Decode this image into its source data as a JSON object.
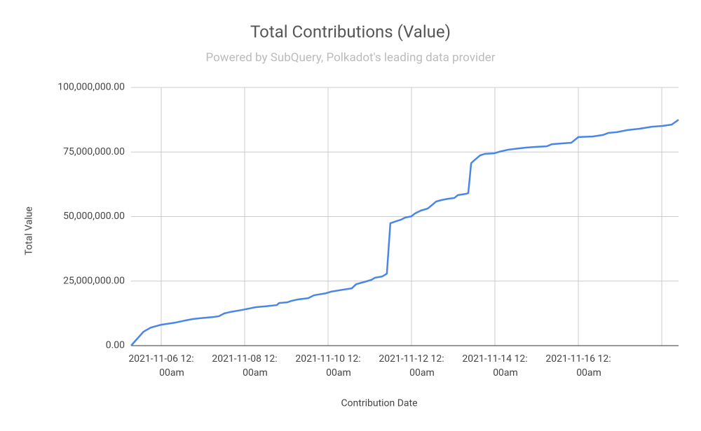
{
  "chart_data": {
    "type": "line",
    "title": "Total Contributions (Value)",
    "subtitle": "Powered by SubQuery, Polkadot's leading data provider",
    "x_label": "Contribution Date",
    "y_label": "Total Value",
    "x": [
      "2021-11-05T06:40",
      "2021-11-05T09:50",
      "2021-11-05T13:50",
      "2021-11-05T18:00",
      "2021-11-06T00:00",
      "2021-11-06T08:00",
      "2021-11-06T14:10",
      "2021-11-06T18:10",
      "2021-11-06T22:10",
      "2021-11-07T06:20",
      "2021-11-07T09:10",
      "2021-11-07T12:20",
      "2021-11-07T15:30",
      "2021-11-07T22:20",
      "2021-11-08T06:30",
      "2021-11-08T14:30",
      "2021-11-08T18:30",
      "2021-11-08T19:50",
      "2021-11-09T00:40",
      "2021-11-09T02:40",
      "2021-11-09T06:40",
      "2021-11-09T12:40",
      "2021-11-09T15:50",
      "2021-11-09T22:50",
      "2021-11-10T01:40",
      "2021-11-10T08:50",
      "2021-11-10T13:40",
      "2021-11-10T16:10",
      "2021-11-10T21:00",
      "2021-11-11T01:00",
      "2021-11-11T03:00",
      "2021-11-11T07:10",
      "2021-11-11T09:10",
      "2021-11-11T09:50",
      "2021-11-11T11:50",
      "2021-11-11T15:10",
      "2021-11-11T18:00",
      "2021-11-11T20:20",
      "2021-11-12T00:00",
      "2021-11-12T02:00",
      "2021-11-12T05:20",
      "2021-11-12T09:20",
      "2021-11-12T11:20",
      "2021-11-12T14:10",
      "2021-11-12T17:20",
      "2021-11-12T21:20",
      "2021-11-13T00:40",
      "2021-11-13T02:40",
      "2021-11-13T07:30",
      "2021-11-13T08:40",
      "2021-11-13T10:20",
      "2021-11-13T12:40",
      "2021-11-13T15:30",
      "2021-11-13T18:20",
      "2021-11-13T23:40",
      "2021-11-14T02:30",
      "2021-11-14T07:40",
      "2021-11-14T13:40",
      "2021-11-14T17:50",
      "2021-11-14T23:50",
      "2021-11-15T05:50",
      "2021-11-15T08:40",
      "2021-11-15T13:50",
      "2021-11-15T20:00",
      "2021-11-16T00:00",
      "2021-11-16T08:10",
      "2021-11-16T14:10",
      "2021-11-16T17:20",
      "2021-11-16T22:10",
      "2021-11-17T04:20",
      "2021-11-17T11:10",
      "2021-11-17T18:20",
      "2021-11-18T00:20",
      "2021-11-18T05:40",
      "2021-11-18T09:40"
    ],
    "series": [
      {
        "name": "Total Value",
        "color": "#4a86e8",
        "values": [
          0,
          2400000,
          5400000,
          7000000,
          8100000,
          8900000,
          9800000,
          10300000,
          10600000,
          11100000,
          11400000,
          12500000,
          13000000,
          13800000,
          14900000,
          15400000,
          15700000,
          16500000,
          16800000,
          17300000,
          17900000,
          18400000,
          19500000,
          20300000,
          20900000,
          21700000,
          22200000,
          23800000,
          24700000,
          25500000,
          26300000,
          26800000,
          27600000,
          27900000,
          47400000,
          48200000,
          48800000,
          49600000,
          50100000,
          51200000,
          52300000,
          53100000,
          54200000,
          55800000,
          56400000,
          56900000,
          57200000,
          58300000,
          58800000,
          59100000,
          70700000,
          72100000,
          73700000,
          74300000,
          74500000,
          75100000,
          75900000,
          76400000,
          76700000,
          77000000,
          77200000,
          78000000,
          78300000,
          78600000,
          80800000,
          81000000,
          81600000,
          82400000,
          82700000,
          83500000,
          84000000,
          84800000,
          85100000,
          85600000,
          87500000
        ]
      }
    ],
    "xlim": [
      "2021-11-05T06:40",
      "2021-11-18T09:40"
    ],
    "xticks": [
      {
        "value": "2021-11-06T00:00",
        "label": "2021-11-06 12:00am"
      },
      {
        "value": "2021-11-08T00:00",
        "label": "2021-11-08 12:00am"
      },
      {
        "value": "2021-11-10T00:00",
        "label": "2021-11-10 12:00am"
      },
      {
        "value": "2021-11-12T00:00",
        "label": "2021-11-12 12:00am"
      },
      {
        "value": "2021-11-14T00:00",
        "label": "2021-11-14 12:00am"
      },
      {
        "value": "2021-11-16T00:00",
        "label": "2021-11-16 12:00am"
      },
      {
        "value": "2021-11-18T00:00",
        "label": null
      }
    ],
    "ylim": [
      0,
      100000000
    ],
    "yticks": [
      {
        "value": 0,
        "label": "0.00"
      },
      {
        "value": 25000000,
        "label": "25,000,000.00"
      },
      {
        "value": 50000000,
        "label": "50,000,000.00"
      },
      {
        "value": 75000000,
        "label": "75,000,000.00"
      },
      {
        "value": 100000000,
        "label": "100,000,000.00"
      }
    ],
    "grid": true
  }
}
